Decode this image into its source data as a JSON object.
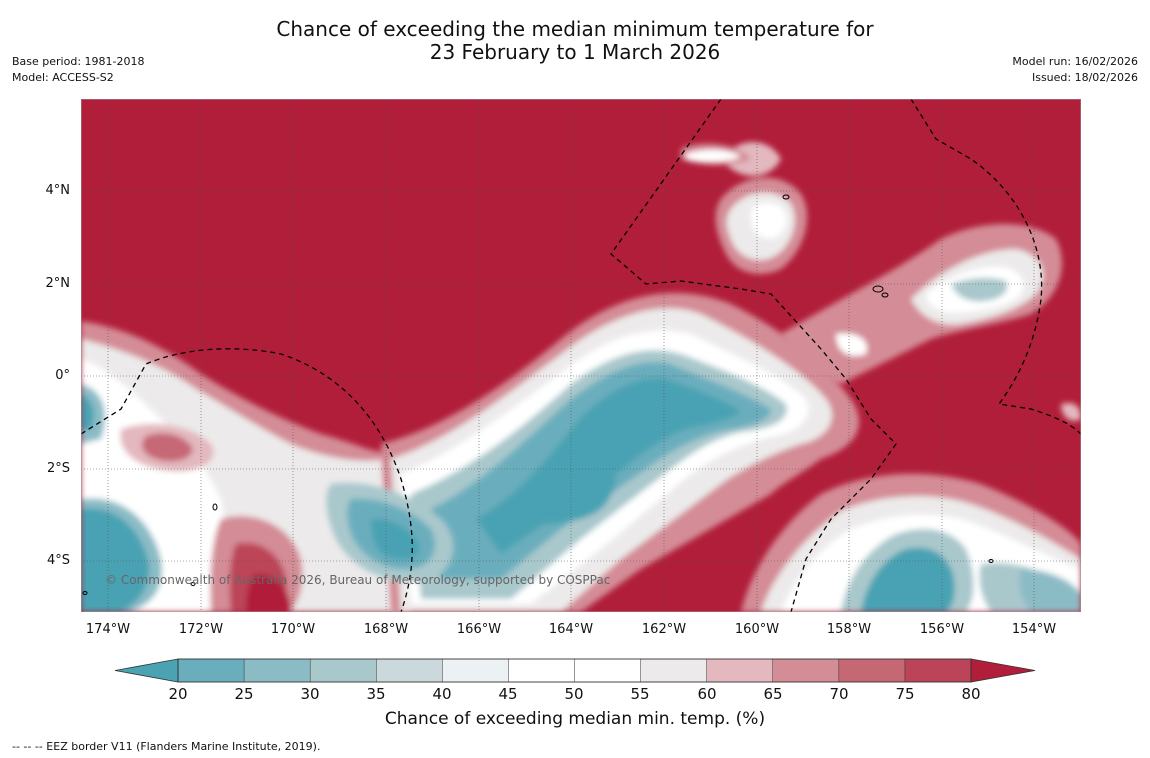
{
  "title_line1": "Chance of exceeding the median minimum temperature for",
  "title_line2": "23 February to 1 March 2026",
  "meta_left": {
    "base_period": "Base period: 1981-2018",
    "model": "Model: ACCESS-S2"
  },
  "meta_right": {
    "model_run": "Model run: 16/02/2026",
    "issued": "Issued: 18/02/2026"
  },
  "lat_labels": [
    "4°N",
    "2°N",
    "0°",
    "2°S",
    "4°S"
  ],
  "lon_labels": [
    "174°W",
    "172°W",
    "170°W",
    "168°W",
    "166°W",
    "164°W",
    "162°W",
    "160°W",
    "158°W",
    "156°W",
    "154°W"
  ],
  "copyright": "© Commonwealth of Australia 2026, Bureau of Meteorology, supported by COSPPac",
  "colorbar": {
    "ticks": [
      "20",
      "25",
      "30",
      "35",
      "40",
      "45",
      "50",
      "55",
      "60",
      "65",
      "70",
      "75",
      "80"
    ],
    "colors": [
      "#4aa2b3",
      "#6aaebd",
      "#8bbcc6",
      "#a9c8cc",
      "#cbd9dc",
      "#ecf2f3",
      "#ffffff",
      "#ffffff",
      "#eceaea",
      "#e3b8be",
      "#d48c96",
      "#c66774",
      "#bc4458"
    ],
    "under_color": "#4aa2b3",
    "over_color": "#b11e3a",
    "label": "Chance of exceeding median min. temp. (%)"
  },
  "colors": {
    "high": "#b11e3a",
    "low": "#4aa2b3"
  },
  "footer": "--  --  -- EEZ border V11 (Flanders Marine Institute, 2019)."
}
